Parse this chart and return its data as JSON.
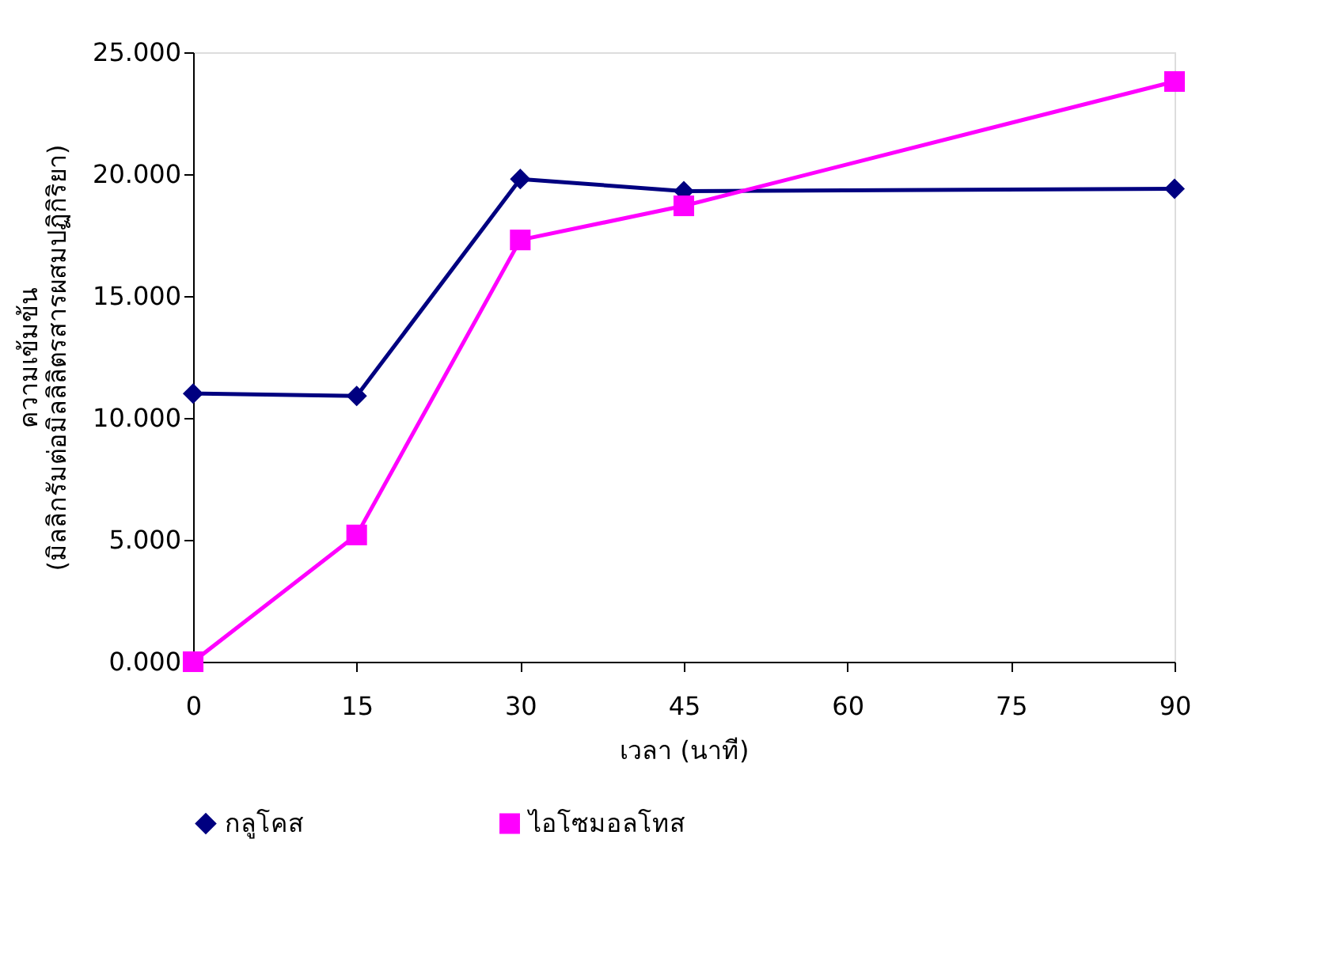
{
  "chart_data": {
    "type": "line",
    "xlabel": "เวลา (นาที)",
    "ylabel": "ความเข้มข้น\n(มิลลิกรัมต่อมิลลิลิตรสารผสมปฏิกิริยา)",
    "x": [
      0,
      15,
      30,
      45,
      90
    ],
    "series": [
      {
        "name": "กลูโคส",
        "color": "#000080",
        "marker": "diamond",
        "values": [
          11.0,
          10.9,
          19.8,
          19.3,
          19.4
        ]
      },
      {
        "name": "ไอโซมอลโทส",
        "color": "#ff00ff",
        "marker": "square",
        "values": [
          0.0,
          5.2,
          17.3,
          18.7,
          23.8
        ]
      }
    ],
    "xlim": [
      0,
      90
    ],
    "xticks": [
      0,
      15,
      30,
      45,
      60,
      75,
      90
    ],
    "ylim": [
      0,
      25
    ],
    "yticks": [
      {
        "value": 0,
        "label": "0.000"
      },
      {
        "value": 5,
        "label": "5.000"
      },
      {
        "value": 10,
        "label": "10.000"
      },
      {
        "value": 15,
        "label": "15.000"
      },
      {
        "value": 20,
        "label": "20.000"
      },
      {
        "value": 25,
        "label": "25.000"
      }
    ],
    "grid": false,
    "legend": "bottom",
    "line_style": "solid"
  }
}
